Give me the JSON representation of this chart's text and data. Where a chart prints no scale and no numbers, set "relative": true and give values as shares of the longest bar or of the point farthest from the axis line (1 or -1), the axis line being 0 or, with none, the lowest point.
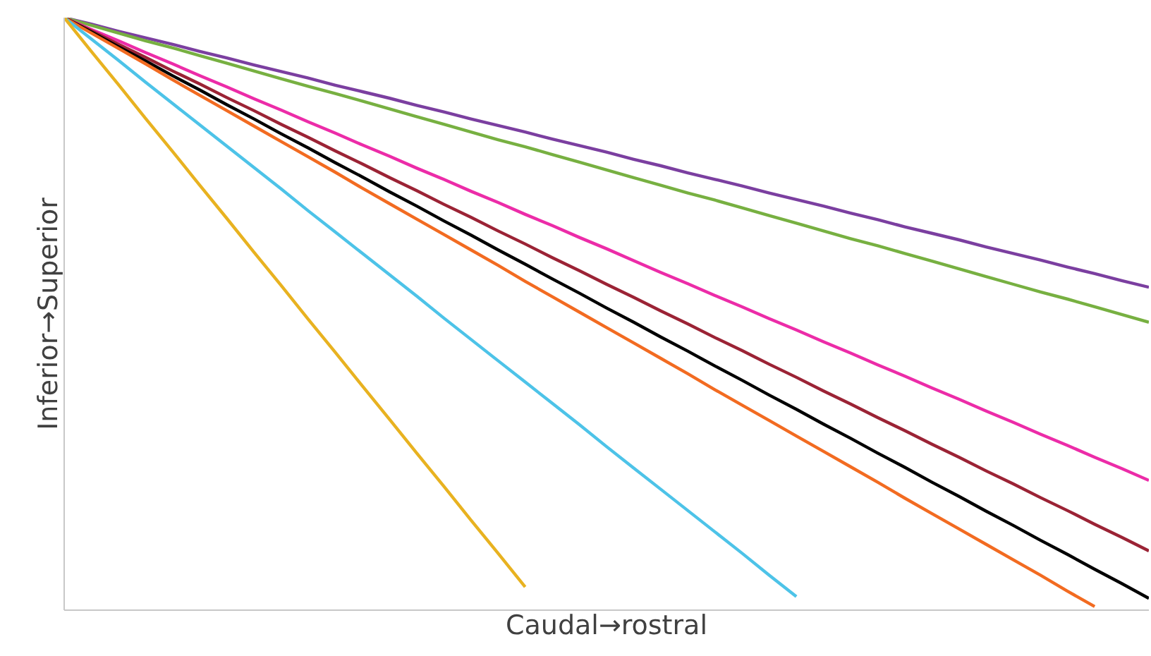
{
  "chart_data": {
    "type": "line",
    "relative": true,
    "xlabel": "Caudal→rostral",
    "ylabel": "Inferior→Superior",
    "marker": "none",
    "line_style": "solid",
    "categories": [
      null,
      null,
      null,
      null,
      null,
      null,
      null,
      null,
      null,
      null,
      null,
      null,
      null,
      null,
      null,
      null,
      null,
      null,
      null,
      null,
      null,
      null,
      null,
      null,
      null,
      null,
      null,
      null,
      null,
      null,
      null,
      null,
      null,
      null,
      null,
      null,
      null,
      null,
      null,
      null,
      null
    ],
    "series": [
      {
        "color": "#7b3fa0",
        "values": [
          1.0,
          0.989,
          0.977,
          0.966,
          0.955,
          0.943,
          0.932,
          0.92,
          0.909,
          0.898,
          0.886,
          0.875,
          0.864,
          0.852,
          0.841,
          0.829,
          0.818,
          0.807,
          0.795,
          0.784,
          0.773,
          0.761,
          0.75,
          0.738,
          0.727,
          0.716,
          0.704,
          0.693,
          0.682,
          0.67,
          0.659,
          0.647,
          0.636,
          0.625,
          0.613,
          0.602,
          0.591,
          0.579,
          0.568,
          0.556,
          0.545
        ]
      },
      {
        "color": "#77b041",
        "values": [
          1.0,
          0.987,
          0.974,
          0.961,
          0.949,
          0.936,
          0.923,
          0.91,
          0.897,
          0.884,
          0.872,
          0.859,
          0.846,
          0.833,
          0.82,
          0.807,
          0.794,
          0.782,
          0.769,
          0.756,
          0.743,
          0.73,
          0.717,
          0.704,
          0.692,
          0.679,
          0.666,
          0.653,
          0.64,
          0.627,
          0.615,
          0.602,
          0.589,
          0.576,
          0.563,
          0.55,
          0.537,
          0.525,
          0.512,
          0.499,
          0.486
        ]
      },
      {
        "color": "#ec2ca8",
        "values": [
          1.0,
          0.98,
          0.961,
          0.941,
          0.922,
          0.902,
          0.883,
          0.863,
          0.844,
          0.824,
          0.805,
          0.785,
          0.766,
          0.746,
          0.727,
          0.707,
          0.688,
          0.668,
          0.649,
          0.629,
          0.61,
          0.59,
          0.57,
          0.551,
          0.531,
          0.512,
          0.492,
          0.473,
          0.453,
          0.434,
          0.414,
          0.395,
          0.375,
          0.356,
          0.336,
          0.317,
          0.297,
          0.278,
          0.258,
          0.239,
          0.219
        ]
      },
      {
        "color": "#9b2335",
        "values": [
          1.0,
          0.978,
          0.955,
          0.933,
          0.91,
          0.888,
          0.865,
          0.843,
          0.82,
          0.798,
          0.775,
          0.753,
          0.73,
          0.708,
          0.685,
          0.663,
          0.64,
          0.618,
          0.595,
          0.573,
          0.55,
          0.528,
          0.505,
          0.483,
          0.46,
          0.438,
          0.415,
          0.393,
          0.37,
          0.348,
          0.325,
          0.303,
          0.28,
          0.258,
          0.235,
          0.213,
          0.19,
          0.168,
          0.145,
          0.123,
          0.1
        ]
      },
      {
        "color": "#000000",
        "values": [
          1.0,
          0.976,
          0.951,
          0.927,
          0.902,
          0.878,
          0.853,
          0.829,
          0.804,
          0.78,
          0.755,
          0.731,
          0.706,
          0.682,
          0.657,
          0.633,
          0.608,
          0.584,
          0.559,
          0.535,
          0.51,
          0.486,
          0.461,
          0.437,
          0.412,
          0.388,
          0.363,
          0.339,
          0.314,
          0.29,
          0.265,
          0.241,
          0.216,
          0.192,
          0.167,
          0.143,
          0.118,
          0.094,
          0.069,
          0.045,
          0.02
        ]
      },
      {
        "color": "#f26b21",
        "values": [
          1.0,
          0.974,
          0.948,
          0.922,
          0.895,
          0.869,
          0.843,
          0.817,
          0.791,
          0.765,
          0.739,
          0.712,
          0.686,
          0.66,
          0.634,
          0.608,
          0.582,
          0.555,
          0.529,
          0.503,
          0.477,
          0.451,
          0.425,
          0.399,
          0.372,
          0.346,
          0.32,
          0.294,
          0.268,
          0.242,
          0.216,
          0.189,
          0.163,
          0.137,
          0.111,
          0.085,
          0.059,
          0.032,
          0.006,
          null,
          null
        ]
      },
      {
        "color": "#4dc3e8",
        "values": [
          1.0,
          0.964,
          0.928,
          0.891,
          0.855,
          0.819,
          0.783,
          0.747,
          0.711,
          0.674,
          0.638,
          0.602,
          0.566,
          0.53,
          0.493,
          0.457,
          0.421,
          0.385,
          0.349,
          0.313,
          0.276,
          0.24,
          0.204,
          0.168,
          0.132,
          0.096,
          0.059,
          0.023,
          null,
          null,
          null,
          null,
          null,
          null,
          null,
          null,
          null,
          null,
          null,
          null,
          null
        ]
      },
      {
        "color": "#e8b220",
        "values": [
          1.0,
          0.943,
          0.887,
          0.83,
          0.774,
          0.717,
          0.661,
          0.604,
          0.548,
          0.491,
          0.435,
          0.378,
          0.322,
          0.265,
          0.209,
          0.152,
          0.096,
          0.039,
          null,
          null,
          null,
          null,
          null,
          null,
          null,
          null,
          null,
          null,
          null,
          null,
          null,
          null,
          null,
          null,
          null,
          null,
          null,
          null,
          null,
          null,
          null
        ]
      }
    ]
  }
}
